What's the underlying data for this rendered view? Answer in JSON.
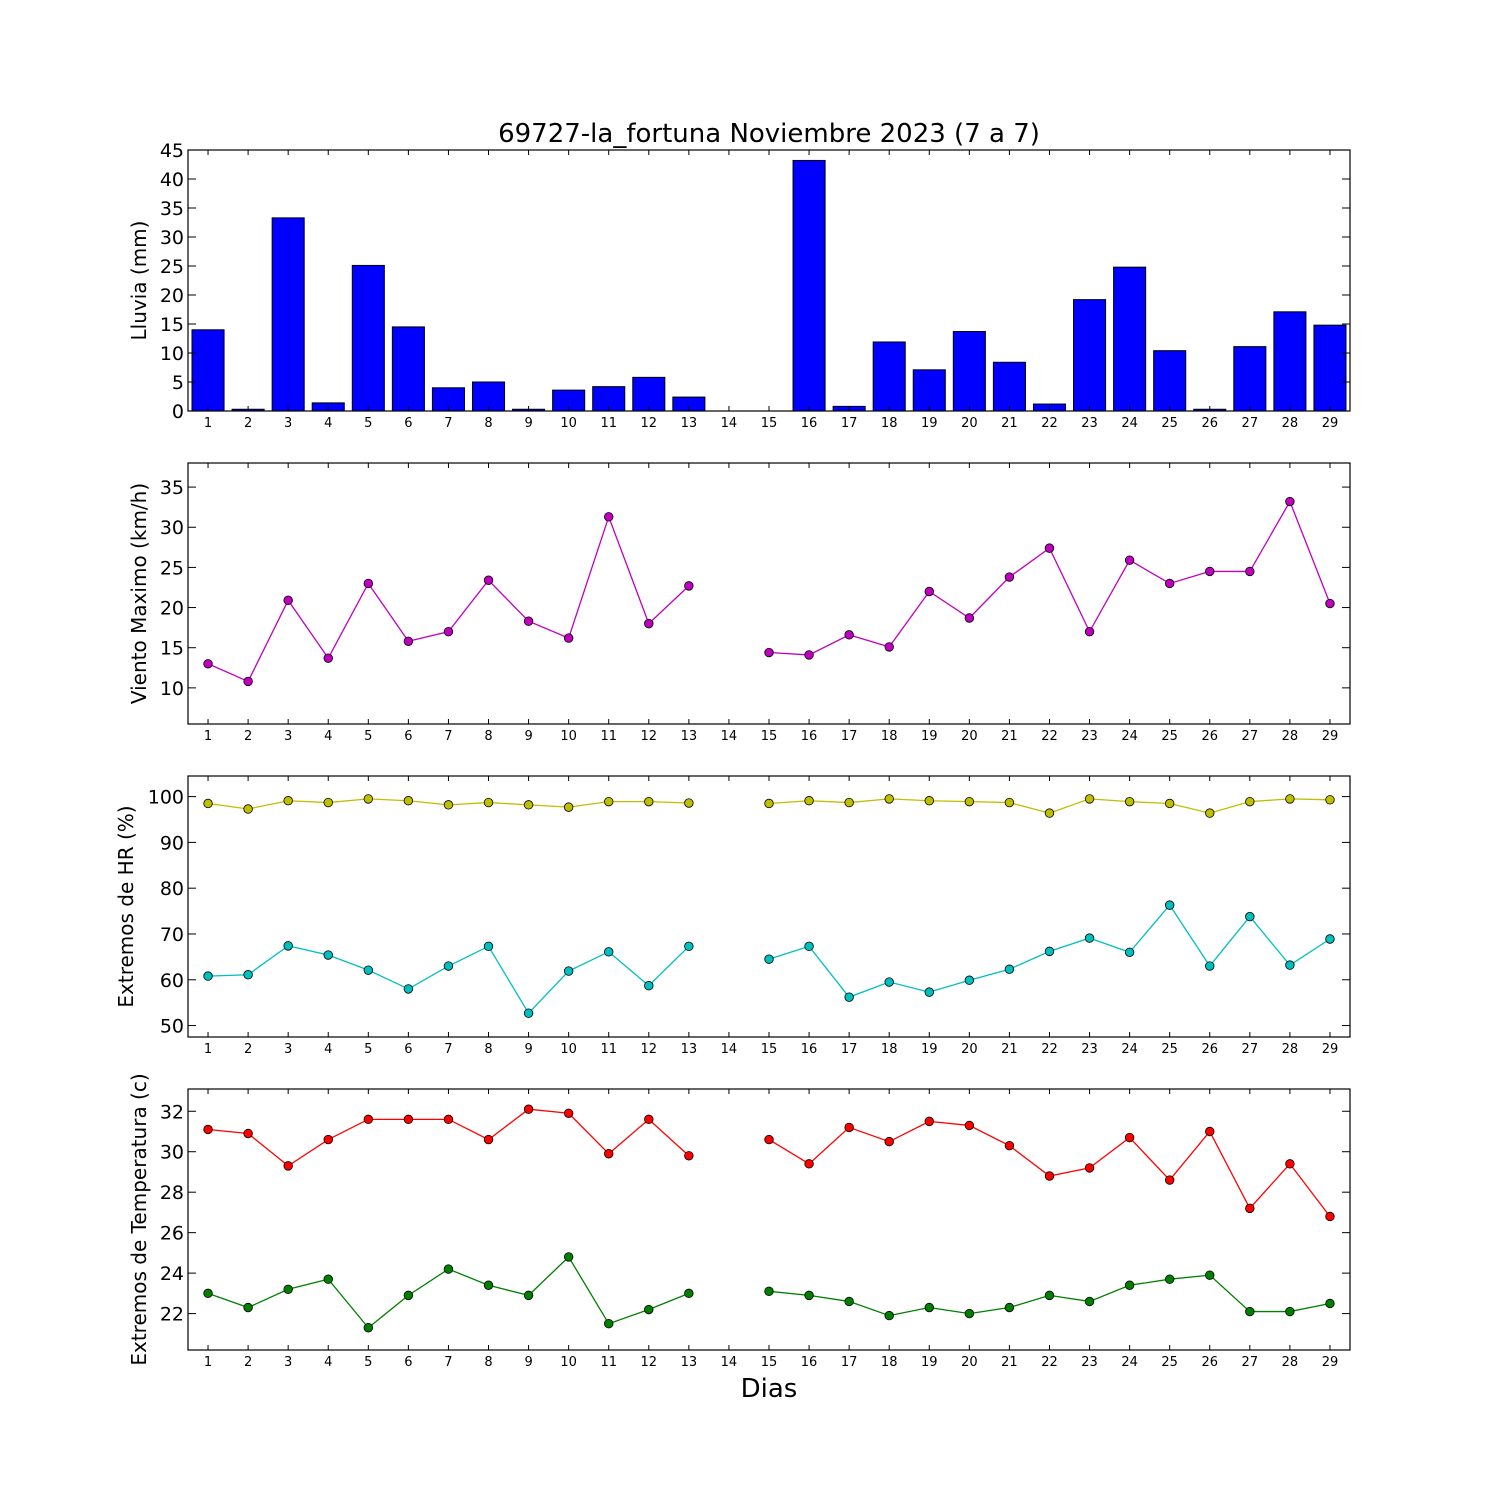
{
  "figure": {
    "title": "69727-la_fortuna Noviembre 2023  (7 a 7)",
    "xlabel": "Dias"
  },
  "chart_data": [
    {
      "type": "bar",
      "ylabel": "Lluvia (mm)",
      "x": [
        1,
        2,
        3,
        4,
        5,
        6,
        7,
        8,
        9,
        10,
        11,
        12,
        13,
        14,
        15,
        16,
        17,
        18,
        19,
        20,
        21,
        22,
        23,
        24,
        25,
        26,
        27,
        28,
        29
      ],
      "xlim": [
        0.5,
        29.5
      ],
      "ylim": [
        0,
        45
      ],
      "yticks": [
        0,
        5,
        10,
        15,
        20,
        25,
        30,
        35,
        40,
        45
      ],
      "series": [
        {
          "color": "#0000ff",
          "values": [
            14.0,
            0.3,
            33.3,
            1.4,
            25.1,
            14.5,
            4.0,
            5.0,
            0.3,
            3.6,
            4.2,
            5.8,
            2.4,
            0,
            0,
            43.2,
            0.8,
            11.9,
            7.1,
            13.7,
            8.4,
            1.2,
            19.2,
            24.8,
            10.4,
            0.3,
            11.1,
            17.1,
            14.8
          ]
        }
      ]
    },
    {
      "type": "line",
      "ylabel": "Viento Maximo (km/h)",
      "x": [
        1,
        2,
        3,
        4,
        5,
        6,
        7,
        8,
        9,
        10,
        11,
        12,
        13,
        14,
        15,
        16,
        17,
        18,
        19,
        20,
        21,
        22,
        23,
        24,
        25,
        26,
        27,
        28,
        29
      ],
      "xlim": [
        0.5,
        29.5
      ],
      "ylim": [
        5.5,
        38
      ],
      "yticks": [
        10,
        15,
        20,
        25,
        30,
        35
      ],
      "series": [
        {
          "color": "#bf00bf",
          "values": [
            13.0,
            10.8,
            20.9,
            13.7,
            23.0,
            15.8,
            17.0,
            23.4,
            18.3,
            16.2,
            31.3,
            18.0,
            22.7,
            null,
            14.4,
            14.1,
            16.6,
            15.1,
            22.0,
            18.7,
            23.8,
            27.4,
            17.0,
            25.9,
            23.0,
            24.5,
            24.5,
            33.2,
            20.5
          ]
        }
      ]
    },
    {
      "type": "line",
      "ylabel": "Extremos de HR (%)",
      "x": [
        1,
        2,
        3,
        4,
        5,
        6,
        7,
        8,
        9,
        10,
        11,
        12,
        13,
        14,
        15,
        16,
        17,
        18,
        19,
        20,
        21,
        22,
        23,
        24,
        25,
        26,
        27,
        28,
        29
      ],
      "xlim": [
        0.5,
        29.5
      ],
      "ylim": [
        47.5,
        104.5
      ],
      "yticks": [
        50,
        60,
        70,
        80,
        90,
        100
      ],
      "series": [
        {
          "color": "#bfbf00",
          "values": [
            98.5,
            97.3,
            99.1,
            98.7,
            99.5,
            99.1,
            98.2,
            98.7,
            98.2,
            97.7,
            98.9,
            98.9,
            98.6,
            null,
            98.5,
            99.1,
            98.7,
            99.5,
            99.1,
            98.9,
            98.7,
            96.4,
            99.5,
            98.9,
            98.5,
            96.4,
            98.9,
            99.5,
            99.3
          ]
        },
        {
          "color": "#00bfbf",
          "values": [
            60.8,
            61.1,
            67.4,
            65.4,
            62.1,
            58.0,
            63.0,
            67.3,
            52.7,
            61.9,
            66.1,
            58.7,
            67.3,
            null,
            64.5,
            67.3,
            56.2,
            59.5,
            57.3,
            59.9,
            62.3,
            66.2,
            69.1,
            66.0,
            76.3,
            63.0,
            73.8,
            63.2,
            68.9
          ]
        }
      ]
    },
    {
      "type": "line",
      "ylabel": "Extremos de Temperatura (c)",
      "x": [
        1,
        2,
        3,
        4,
        5,
        6,
        7,
        8,
        9,
        10,
        11,
        12,
        13,
        14,
        15,
        16,
        17,
        18,
        19,
        20,
        21,
        22,
        23,
        24,
        25,
        26,
        27,
        28,
        29
      ],
      "xlim": [
        0.5,
        29.5
      ],
      "ylim": [
        20.2,
        33.1
      ],
      "yticks": [
        22,
        24,
        26,
        28,
        30,
        32
      ],
      "series": [
        {
          "color": "#ff0000",
          "values": [
            31.1,
            30.9,
            29.3,
            30.6,
            31.6,
            31.6,
            31.6,
            30.6,
            32.1,
            31.9,
            29.9,
            31.6,
            29.8,
            null,
            30.6,
            29.4,
            31.2,
            30.5,
            31.5,
            31.3,
            30.3,
            28.8,
            29.2,
            30.7,
            28.6,
            31.0,
            27.2,
            29.4,
            26.8
          ]
        },
        {
          "color": "#008000",
          "values": [
            23.0,
            22.3,
            23.2,
            23.7,
            21.3,
            22.9,
            24.2,
            23.4,
            22.9,
            24.8,
            21.5,
            22.2,
            23.0,
            null,
            23.1,
            22.9,
            22.6,
            21.9,
            22.3,
            22.0,
            22.3,
            22.9,
            22.6,
            23.4,
            23.7,
            23.9,
            22.1,
            22.1,
            22.5
          ]
        }
      ]
    }
  ]
}
